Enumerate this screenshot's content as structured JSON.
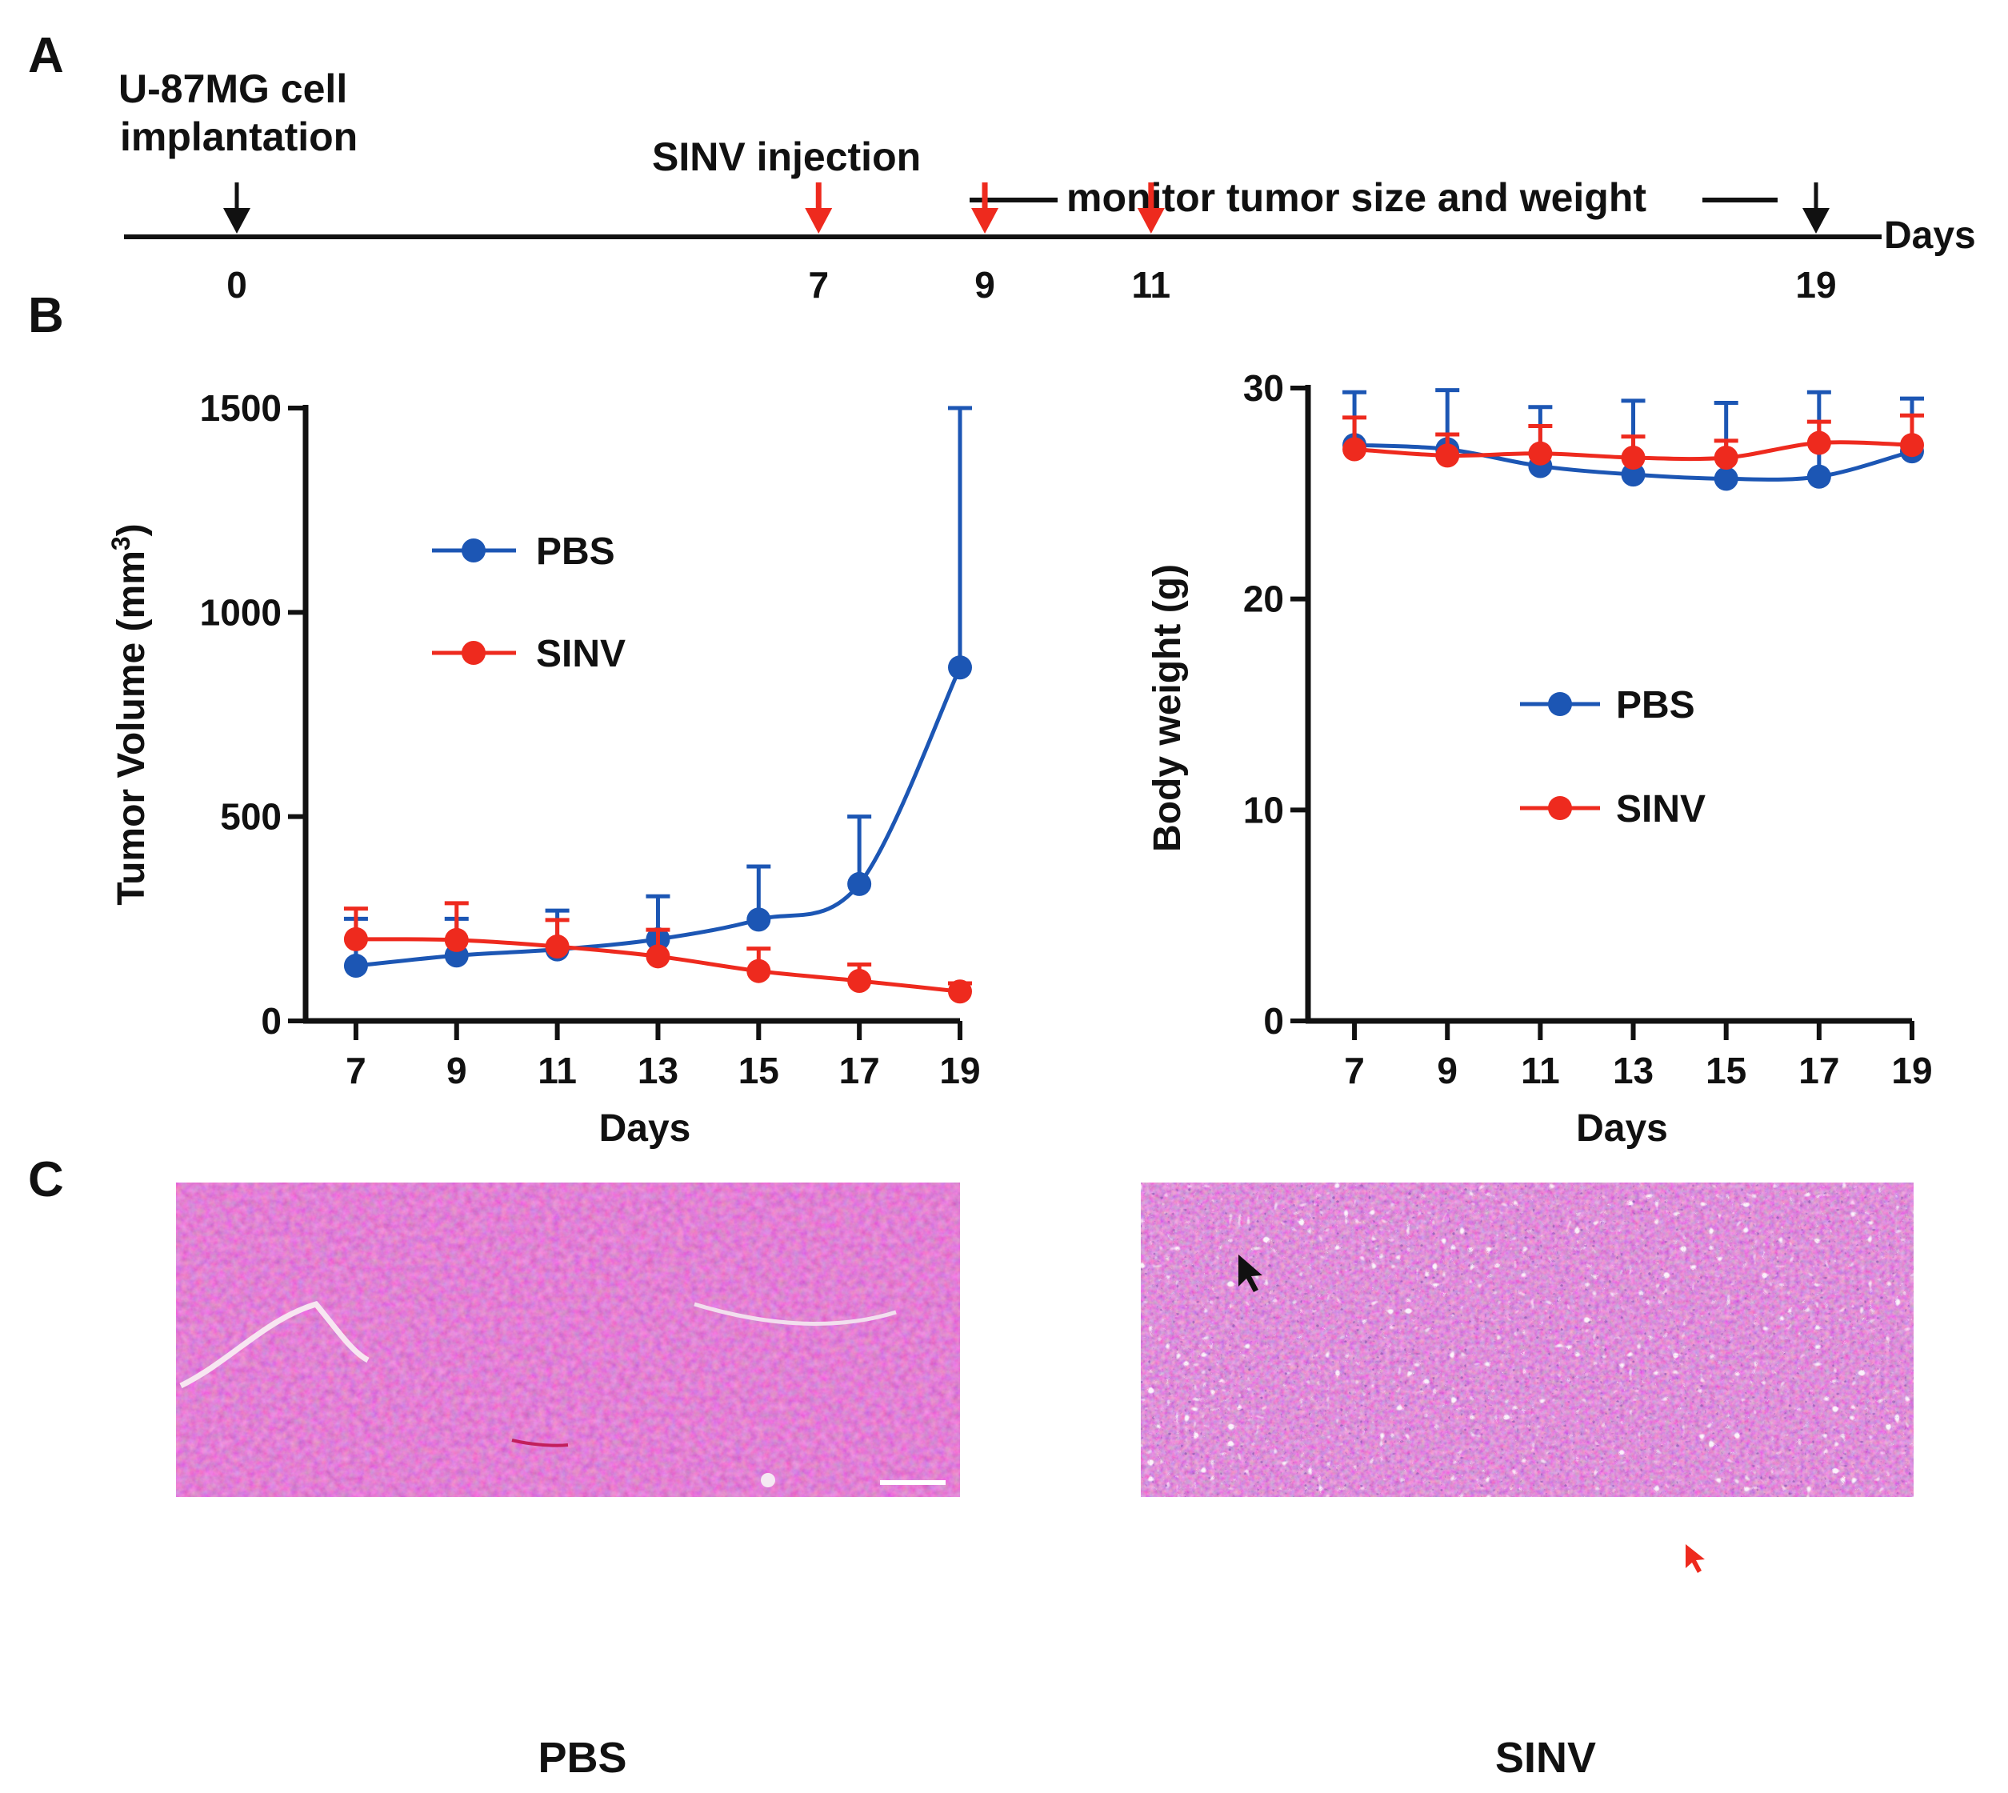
{
  "panel_labels": {
    "a": "A",
    "b": "B",
    "c": "C"
  },
  "timeline": {
    "start_label": [
      "U-87MG cell",
      "implantation"
    ],
    "injection_label": "SINV injection",
    "monitor_label": "monitor tumor size and weight",
    "axis_unit": "Days",
    "days": [
      0,
      7,
      9,
      11,
      19
    ],
    "day_labels": [
      "0",
      "7",
      "9",
      "11",
      "19"
    ],
    "black_arrow_days": [
      0,
      19
    ],
    "red_arrow_days": [
      7,
      9,
      11
    ]
  },
  "chart_data": [
    {
      "type": "line",
      "ylabel_main": "Tumor Volume (mm",
      "ylabel_sup": "3",
      "ylabel_end": ")",
      "xlabel": "Days",
      "x": [
        7,
        9,
        11,
        13,
        15,
        17,
        19
      ],
      "xlim": [
        6,
        19
      ],
      "ylim": [
        0,
        1500
      ],
      "yticks": [
        0,
        500,
        1000,
        1500
      ],
      "legend": "upper-left",
      "series": [
        {
          "name": "PBS",
          "color": "#1c56b4",
          "values": [
            135,
            160,
            175,
            200,
            248,
            335,
            865
          ],
          "err": [
            115,
            90,
            95,
            105,
            130,
            165,
            635
          ]
        },
        {
          "name": "SINV",
          "color": "#ee2a1e",
          "values": [
            200,
            198,
            182,
            158,
            122,
            98,
            72
          ],
          "err": [
            75,
            90,
            65,
            65,
            55,
            40,
            20
          ]
        }
      ]
    },
    {
      "type": "line",
      "ylabel": "Body weight (g)",
      "xlabel": "Days",
      "x": [
        7,
        9,
        11,
        13,
        15,
        17,
        19
      ],
      "xlim": [
        6,
        19
      ],
      "ylim": [
        0,
        30
      ],
      "yticks": [
        0,
        10,
        20,
        30
      ],
      "legend": "middle-right",
      "series": [
        {
          "name": "PBS",
          "color": "#1c56b4",
          "values": [
            27.3,
            27.1,
            26.3,
            25.9,
            25.7,
            25.8,
            27.0
          ],
          "err": [
            2.5,
            2.8,
            2.8,
            3.5,
            3.6,
            4.0,
            2.5
          ]
        },
        {
          "name": "SINV",
          "color": "#ee2a1e",
          "values": [
            27.1,
            26.8,
            26.9,
            26.7,
            26.7,
            27.4,
            27.3
          ],
          "err": [
            1.5,
            1.0,
            1.3,
            1.0,
            0.8,
            1.0,
            1.4
          ]
        }
      ]
    }
  ],
  "histology": {
    "left_caption": "PBS",
    "right_caption": "SINV"
  }
}
